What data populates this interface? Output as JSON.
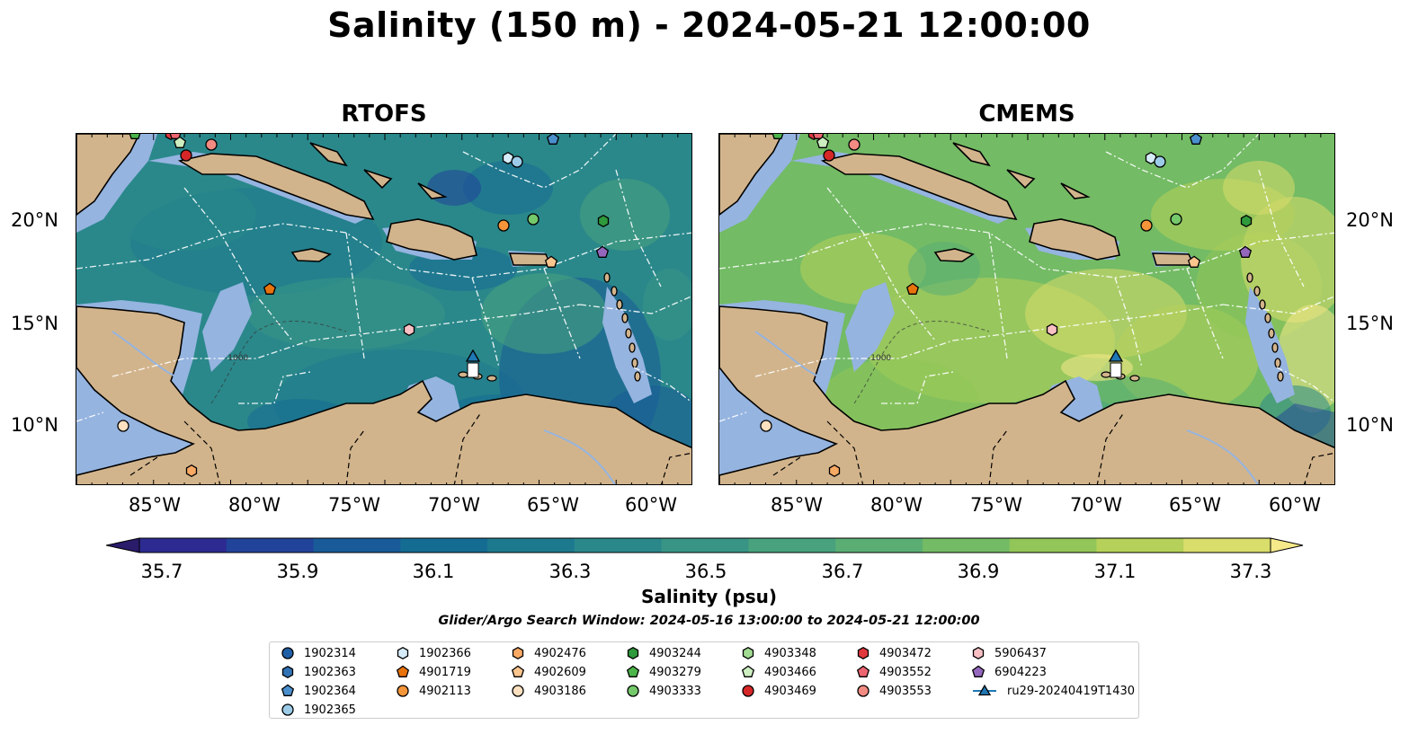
{
  "suptitle": "Salinity (150 m) - 2024-05-21 12:00:00",
  "panels": [
    {
      "title": "RTOFS"
    },
    {
      "title": "CMEMS"
    }
  ],
  "lat_ticks": [
    "20°N",
    "15°N",
    "10°N"
  ],
  "lon_ticks": [
    "85°W",
    "80°W",
    "75°W",
    "70°W",
    "65°W",
    "60°W"
  ],
  "colorbar": {
    "label": "Salinity (psu)",
    "ticks": [
      "35.7",
      "35.9",
      "36.1",
      "36.3",
      "36.5",
      "36.7",
      "36.9",
      "37.1",
      "37.3"
    ],
    "colors": [
      "#2a1b6b",
      "#2d2b91",
      "#21439a",
      "#185b98",
      "#156c93",
      "#1d7a8e",
      "#2a888b",
      "#389586",
      "#48a27e",
      "#5aae74",
      "#73bb65",
      "#92c658",
      "#b6d159",
      "#d9dd6b",
      "#f5e98a"
    ]
  },
  "window_text": "Glider/Argo Search Window: 2024-05-16 13:00:00 to 2024-05-21 12:00:00",
  "legend": [
    {
      "id": "1902314",
      "marker": "circle",
      "color": "#1f5fa6"
    },
    {
      "id": "1902363",
      "marker": "hexagon",
      "color": "#3273b5"
    },
    {
      "id": "1902364",
      "marker": "pentagon",
      "color": "#4b8fcc"
    },
    {
      "id": "1902365",
      "marker": "circle",
      "color": "#9ccbe8"
    },
    {
      "id": "1902366",
      "marker": "hexagon",
      "color": "#d6ecf8"
    },
    {
      "id": "4901719",
      "marker": "pentagon",
      "color": "#e8730c"
    },
    {
      "id": "4902113",
      "marker": "circle",
      "color": "#f5953a"
    },
    {
      "id": "4902476",
      "marker": "hexagon",
      "color": "#f8a964"
    },
    {
      "id": "4902609",
      "marker": "pentagon",
      "color": "#fbc58e"
    },
    {
      "id": "4903186",
      "marker": "circle",
      "color": "#fde0c0"
    },
    {
      "id": "4903244",
      "marker": "hexagon",
      "color": "#2e9a3b"
    },
    {
      "id": "4903279",
      "marker": "pentagon",
      "color": "#4cb54a"
    },
    {
      "id": "4903333",
      "marker": "circle",
      "color": "#74c96b"
    },
    {
      "id": "4903348",
      "marker": "hexagon",
      "color": "#a2dc92"
    },
    {
      "id": "4903466",
      "marker": "pentagon",
      "color": "#cdeec0"
    },
    {
      "id": "4903469",
      "marker": "circle",
      "color": "#d62728"
    },
    {
      "id": "4903472",
      "marker": "hexagon",
      "color": "#e0383d"
    },
    {
      "id": "4903552",
      "marker": "pentagon",
      "color": "#ec6570"
    },
    {
      "id": "4903553",
      "marker": "circle",
      "color": "#f28b82"
    },
    {
      "id": "5906437",
      "marker": "hexagon",
      "color": "#f9c0c4"
    },
    {
      "id": "6904223",
      "marker": "pentagon",
      "color": "#9467bd"
    },
    {
      "id": "ru29-20240419T1430",
      "marker": "triangle-line",
      "color": "#1f77b4"
    }
  ],
  "contour_label": "-1000"
}
